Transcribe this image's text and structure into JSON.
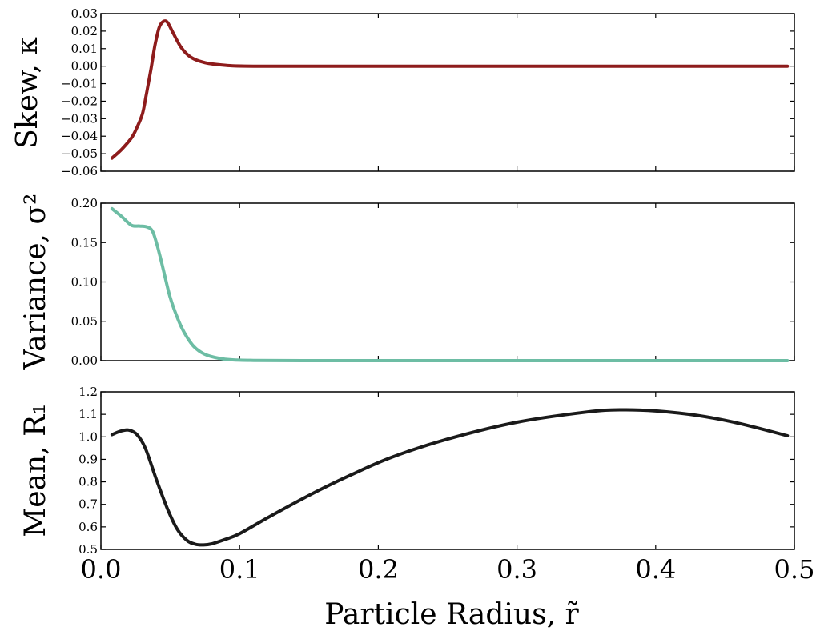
{
  "chart_data": [
    {
      "type": "line",
      "title": "",
      "ylabel": "Skew, κ",
      "ylim": [
        -0.06,
        0.03
      ],
      "xlim": [
        0.0,
        0.5
      ],
      "yticks": [
        -0.06,
        -0.05,
        -0.04,
        -0.03,
        -0.02,
        -0.01,
        0.0,
        0.01,
        0.02,
        0.03
      ],
      "ytick_labels": [
        "−0.06",
        "−0.05",
        "−0.04",
        "−0.03",
        "−0.02",
        "−0.01",
        "0.00",
        "0.01",
        "0.02",
        "0.03"
      ],
      "color": "#8e1c1c",
      "series": [
        {
          "name": "skew",
          "x": [
            0.008,
            0.015,
            0.022,
            0.026,
            0.03,
            0.033,
            0.036,
            0.039,
            0.042,
            0.045,
            0.048,
            0.052,
            0.058,
            0.065,
            0.075,
            0.09,
            0.11,
            0.2,
            0.3,
            0.4,
            0.495
          ],
          "y": [
            -0.0525,
            -0.0475,
            -0.041,
            -0.035,
            -0.027,
            -0.015,
            -0.002,
            0.012,
            0.022,
            0.0255,
            0.025,
            0.019,
            0.0105,
            0.005,
            0.002,
            0.0005,
            0.0,
            0.0,
            0.0,
            0.0,
            0.0
          ]
        }
      ]
    },
    {
      "type": "line",
      "title": "",
      "ylabel": "Variance, σ²",
      "ylim": [
        0.0,
        0.2
      ],
      "xlim": [
        0.0,
        0.5
      ],
      "yticks": [
        0.0,
        0.05,
        0.1,
        0.15,
        0.2
      ],
      "ytick_labels": [
        "0.00",
        "0.05",
        "0.10",
        "0.15",
        "0.20"
      ],
      "color": "#6dbda4",
      "series": [
        {
          "name": "variance",
          "x": [
            0.008,
            0.015,
            0.022,
            0.028,
            0.033,
            0.037,
            0.04,
            0.043,
            0.046,
            0.05,
            0.055,
            0.06,
            0.067,
            0.075,
            0.085,
            0.095,
            0.11,
            0.15,
            0.2,
            0.3,
            0.4,
            0.495
          ],
          "y": [
            0.193,
            0.183,
            0.172,
            0.171,
            0.17,
            0.165,
            0.15,
            0.13,
            0.108,
            0.08,
            0.055,
            0.036,
            0.018,
            0.008,
            0.003,
            0.001,
            0.0003,
            0.0,
            0.0,
            0.0,
            0.0,
            0.0
          ]
        }
      ]
    },
    {
      "type": "line",
      "title": "",
      "xlabel": "Particle Radius, r̃",
      "ylabel": "Mean, R₁",
      "ylim": [
        0.5,
        1.2
      ],
      "xlim": [
        0.0,
        0.5
      ],
      "yticks": [
        0.5,
        0.6,
        0.7,
        0.8,
        0.9,
        1.0,
        1.1,
        1.2
      ],
      "ytick_labels": [
        "0.5",
        "0.6",
        "0.7",
        "0.8",
        "0.9",
        "1.0",
        "1.1",
        "1.2"
      ],
      "xticks": [
        0.0,
        0.1,
        0.2,
        0.3,
        0.4,
        0.5
      ],
      "xtick_labels": [
        "0.0",
        "0.1",
        "0.2",
        "0.3",
        "0.4",
        "0.5"
      ],
      "color": "#1a1a1a",
      "series": [
        {
          "name": "mean",
          "x": [
            0.008,
            0.014,
            0.02,
            0.026,
            0.032,
            0.04,
            0.048,
            0.055,
            0.062,
            0.068,
            0.074,
            0.08,
            0.09,
            0.1,
            0.12,
            0.15,
            0.18,
            0.21,
            0.25,
            0.3,
            0.35,
            0.375,
            0.4,
            0.43,
            0.46,
            0.495
          ],
          "y": [
            1.01,
            1.025,
            1.03,
            1.01,
            0.95,
            0.81,
            0.68,
            0.59,
            0.54,
            0.523,
            0.52,
            0.525,
            0.545,
            0.57,
            0.64,
            0.74,
            0.83,
            0.91,
            0.99,
            1.065,
            1.11,
            1.12,
            1.115,
            1.095,
            1.06,
            1.005
          ]
        }
      ]
    }
  ]
}
